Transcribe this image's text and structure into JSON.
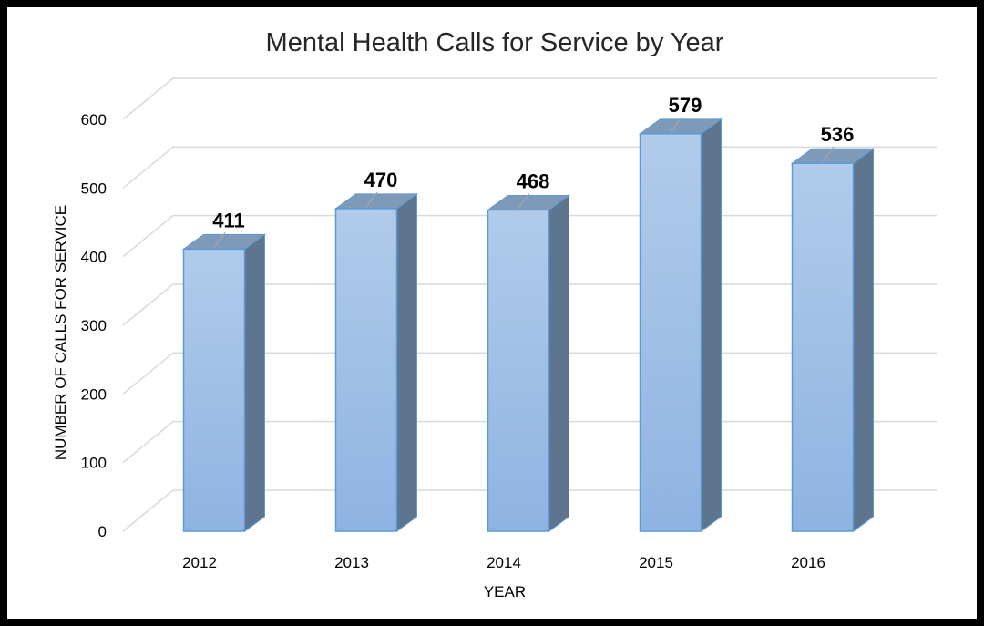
{
  "chart_data": {
    "type": "bar",
    "title": "Mental Health Calls for Service by Year",
    "xlabel": "YEAR",
    "ylabel": "NUMBER OF CALLS FOR SERVICE",
    "categories": [
      "2012",
      "2013",
      "2014",
      "2015",
      "2016"
    ],
    "values": [
      411,
      470,
      468,
      579,
      536
    ],
    "ylim": [
      0,
      600
    ],
    "yticks": [
      "0",
      "100",
      "200",
      "300",
      "400",
      "500",
      "600"
    ],
    "grid": true,
    "legend": "none",
    "style": "3d-column"
  },
  "colors": {
    "bar_top": "#b1cbea",
    "bar_bottom": "#8fb3e2",
    "bar_side": "#5e7590",
    "bar_cap": "#7f9ab8",
    "bar_stroke": "#5b9bd5",
    "grid": "#d9d9d9",
    "frame": "#000000"
  }
}
